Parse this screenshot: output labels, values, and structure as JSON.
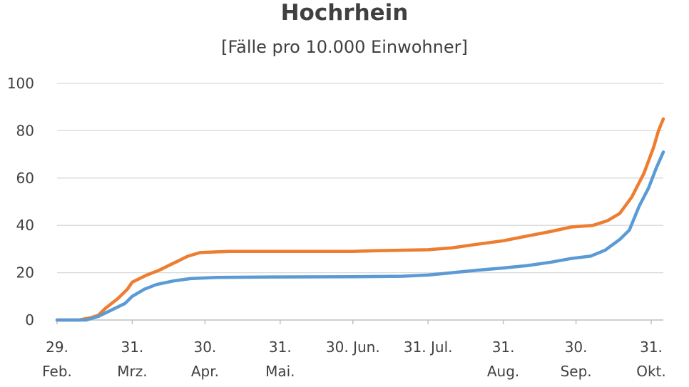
{
  "chart_data": {
    "type": "line",
    "title": "Hochrhein",
    "subtitle": "[Fälle pro 10.000  Einwohner]",
    "xlabel": "",
    "ylabel": "",
    "ylim": [
      0,
      100
    ],
    "y_ticks": [
      0,
      20,
      40,
      60,
      80,
      100
    ],
    "x_range": [
      "2020-02-29",
      "2020-11-05"
    ],
    "x_ticks": [
      {
        "date": "2020-02-29",
        "line1": "29.",
        "line2": "Feb."
      },
      {
        "date": "2020-03-31",
        "line1": "31.",
        "line2": "Mrz."
      },
      {
        "date": "2020-04-30",
        "line1": "30.",
        "line2": "Apr."
      },
      {
        "date": "2020-05-31",
        "line1": "31.",
        "line2": "Mai."
      },
      {
        "date": "2020-06-30",
        "line1": "30. Jun.",
        "line2": ""
      },
      {
        "date": "2020-07-31",
        "line1": "31. Jul.",
        "line2": ""
      },
      {
        "date": "2020-08-31",
        "line1": "31.",
        "line2": "Aug."
      },
      {
        "date": "2020-09-30",
        "line1": "30.",
        "line2": "Sep."
      },
      {
        "date": "2020-10-31",
        "line1": "31.",
        "line2": "Okt."
      }
    ],
    "grid": true,
    "legend": "none",
    "series": [
      {
        "color": "#ED7D31",
        "points": [
          [
            "2020-02-29",
            0
          ],
          [
            "2020-03-09",
            0
          ],
          [
            "2020-03-14",
            1
          ],
          [
            "2020-03-17",
            2
          ],
          [
            "2020-03-20",
            5
          ],
          [
            "2020-03-25",
            9
          ],
          [
            "2020-03-29",
            13
          ],
          [
            "2020-03-31",
            16
          ],
          [
            "2020-04-06",
            19
          ],
          [
            "2020-04-11",
            21
          ],
          [
            "2020-04-17",
            24
          ],
          [
            "2020-04-23",
            27
          ],
          [
            "2020-04-28",
            28.5
          ],
          [
            "2020-05-05",
            28.8
          ],
          [
            "2020-05-10",
            29
          ],
          [
            "2020-05-31",
            29
          ],
          [
            "2020-06-30",
            29
          ],
          [
            "2020-07-10",
            29.3
          ],
          [
            "2020-07-31",
            29.7
          ],
          [
            "2020-08-10",
            30.5
          ],
          [
            "2020-08-20",
            32
          ],
          [
            "2020-08-31",
            33.5
          ],
          [
            "2020-09-10",
            35.5
          ],
          [
            "2020-09-20",
            37.5
          ],
          [
            "2020-09-28",
            39.3
          ],
          [
            "2020-10-07",
            40
          ],
          [
            "2020-10-13",
            42
          ],
          [
            "2020-10-18",
            45
          ],
          [
            "2020-10-23",
            52
          ],
          [
            "2020-10-28",
            62
          ],
          [
            "2020-11-01",
            73
          ],
          [
            "2020-11-03",
            80
          ],
          [
            "2020-11-05",
            85
          ]
        ]
      },
      {
        "color": "#5B9BD5",
        "points": [
          [
            "2020-02-29",
            0
          ],
          [
            "2020-03-12",
            0
          ],
          [
            "2020-03-17",
            1.5
          ],
          [
            "2020-03-22",
            4
          ],
          [
            "2020-03-28",
            7
          ],
          [
            "2020-03-31",
            10
          ],
          [
            "2020-04-05",
            13
          ],
          [
            "2020-04-10",
            15
          ],
          [
            "2020-04-17",
            16.5
          ],
          [
            "2020-04-24",
            17.5
          ],
          [
            "2020-05-05",
            18
          ],
          [
            "2020-05-31",
            18.2
          ],
          [
            "2020-06-30",
            18.3
          ],
          [
            "2020-07-20",
            18.5
          ],
          [
            "2020-07-31",
            19
          ],
          [
            "2020-08-10",
            20
          ],
          [
            "2020-08-20",
            21
          ],
          [
            "2020-08-31",
            22
          ],
          [
            "2020-09-10",
            23
          ],
          [
            "2020-09-20",
            24.5
          ],
          [
            "2020-09-28",
            26
          ],
          [
            "2020-10-06",
            27
          ],
          [
            "2020-10-12",
            29.5
          ],
          [
            "2020-10-18",
            34
          ],
          [
            "2020-10-22",
            38
          ],
          [
            "2020-10-26",
            48
          ],
          [
            "2020-10-30",
            56
          ],
          [
            "2020-11-02",
            64
          ],
          [
            "2020-11-05",
            71
          ]
        ]
      }
    ]
  }
}
